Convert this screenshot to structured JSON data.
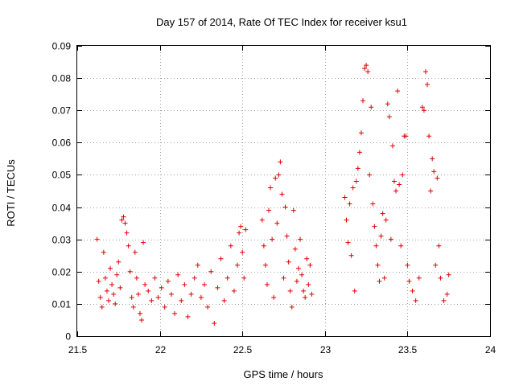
{
  "chart_data": {
    "type": "scatter",
    "title": "Day 157 of 2014, Rate Of TEC Index for receiver ksu1",
    "xlabel": "GPS time / hours",
    "ylabel": "ROTI / TECUs",
    "xlim": [
      21.5,
      24
    ],
    "ylim": [
      0,
      0.09
    ],
    "xticks": [
      21.5,
      22,
      22.5,
      23,
      23.5,
      24
    ],
    "xtick_labels": [
      "21.5",
      "22",
      "22.5",
      "23",
      "23.5",
      "24"
    ],
    "yticks": [
      0,
      0.01,
      0.02,
      0.03,
      0.04,
      0.05,
      0.06,
      0.07,
      0.08,
      0.09
    ],
    "ytick_labels": [
      "0",
      "0.01",
      "0.02",
      "0.03",
      "0.04",
      "0.05",
      "0.06",
      "0.07",
      "0.08",
      "0.09"
    ],
    "grid": true,
    "marker": "+",
    "marker_color": "#e00000",
    "series": [
      {
        "name": "ROTI",
        "points": [
          [
            21.62,
            0.03
          ],
          [
            21.63,
            0.017
          ],
          [
            21.64,
            0.012
          ],
          [
            21.65,
            0.009
          ],
          [
            21.66,
            0.026
          ],
          [
            21.67,
            0.018
          ],
          [
            21.68,
            0.014
          ],
          [
            21.69,
            0.011
          ],
          [
            21.7,
            0.021
          ],
          [
            21.71,
            0.016
          ],
          [
            21.72,
            0.013
          ],
          [
            21.73,
            0.01
          ],
          [
            21.74,
            0.019
          ],
          [
            21.75,
            0.023
          ],
          [
            21.76,
            0.015
          ],
          [
            21.77,
            0.036
          ],
          [
            21.78,
            0.037
          ],
          [
            21.79,
            0.035
          ],
          [
            21.8,
            0.032
          ],
          [
            21.81,
            0.028
          ],
          [
            21.82,
            0.02
          ],
          [
            21.83,
            0.012
          ],
          [
            21.84,
            0.009
          ],
          [
            21.85,
            0.026
          ],
          [
            21.86,
            0.018
          ],
          [
            21.87,
            0.013
          ],
          [
            21.88,
            0.007
          ],
          [
            21.89,
            0.005
          ],
          [
            21.9,
            0.029
          ],
          [
            21.91,
            0.016
          ],
          [
            21.93,
            0.014
          ],
          [
            21.95,
            0.011
          ],
          [
            21.97,
            0.018
          ],
          [
            21.99,
            0.012
          ],
          [
            22.01,
            0.015
          ],
          [
            22.03,
            0.009
          ],
          [
            22.05,
            0.017
          ],
          [
            22.07,
            0.013
          ],
          [
            22.09,
            0.007
          ],
          [
            22.11,
            0.019
          ],
          [
            22.13,
            0.011
          ],
          [
            22.15,
            0.016
          ],
          [
            22.17,
            0.006
          ],
          [
            22.19,
            0.013
          ],
          [
            22.21,
            0.018
          ],
          [
            22.23,
            0.022
          ],
          [
            22.25,
            0.012
          ],
          [
            22.27,
            0.016
          ],
          [
            22.29,
            0.009
          ],
          [
            22.31,
            0.02
          ],
          [
            22.33,
            0.004
          ],
          [
            22.35,
            0.015
          ],
          [
            22.37,
            0.024
          ],
          [
            22.39,
            0.011
          ],
          [
            22.41,
            0.018
          ],
          [
            22.43,
            0.028
          ],
          [
            22.45,
            0.014
          ],
          [
            22.47,
            0.022
          ],
          [
            22.48,
            0.032
          ],
          [
            22.49,
            0.034
          ],
          [
            22.5,
            0.026
          ],
          [
            22.51,
            0.018
          ],
          [
            22.52,
            0.033
          ],
          [
            22.62,
            0.036
          ],
          [
            22.63,
            0.028
          ],
          [
            22.64,
            0.022
          ],
          [
            22.65,
            0.016
          ],
          [
            22.66,
            0.039
          ],
          [
            22.67,
            0.046
          ],
          [
            22.68,
            0.03
          ],
          [
            22.69,
            0.012
          ],
          [
            22.7,
            0.049
          ],
          [
            22.71,
            0.035
          ],
          [
            22.72,
            0.05
          ],
          [
            22.73,
            0.054
          ],
          [
            22.74,
            0.044
          ],
          [
            22.75,
            0.018
          ],
          [
            22.76,
            0.04
          ],
          [
            22.77,
            0.031
          ],
          [
            22.78,
            0.023
          ],
          [
            22.79,
            0.014
          ],
          [
            22.8,
            0.009
          ],
          [
            22.81,
            0.039
          ],
          [
            22.82,
            0.027
          ],
          [
            22.83,
            0.017
          ],
          [
            22.84,
            0.021
          ],
          [
            22.85,
            0.03
          ],
          [
            22.86,
            0.019
          ],
          [
            22.87,
            0.014
          ],
          [
            22.88,
            0.012
          ],
          [
            22.89,
            0.024
          ],
          [
            22.9,
            0.016
          ],
          [
            22.91,
            0.022
          ],
          [
            22.92,
            0.013
          ],
          [
            23.12,
            0.043
          ],
          [
            23.13,
            0.036
          ],
          [
            23.14,
            0.029
          ],
          [
            23.15,
            0.041
          ],
          [
            23.16,
            0.025
          ],
          [
            23.17,
            0.046
          ],
          [
            23.18,
            0.014
          ],
          [
            23.19,
            0.048
          ],
          [
            23.2,
            0.052
          ],
          [
            23.21,
            0.057
          ],
          [
            23.22,
            0.063
          ],
          [
            23.23,
            0.073
          ],
          [
            23.24,
            0.083
          ],
          [
            23.25,
            0.084
          ],
          [
            23.26,
            0.082
          ],
          [
            23.27,
            0.05
          ],
          [
            23.28,
            0.071
          ],
          [
            23.29,
            0.041
          ],
          [
            23.3,
            0.034
          ],
          [
            23.31,
            0.028
          ],
          [
            23.32,
            0.022
          ],
          [
            23.33,
            0.017
          ],
          [
            23.34,
            0.031
          ],
          [
            23.35,
            0.038
          ],
          [
            23.36,
            0.018
          ],
          [
            23.37,
            0.036
          ],
          [
            23.38,
            0.072
          ],
          [
            23.39,
            0.068
          ],
          [
            23.4,
            0.03
          ],
          [
            23.41,
            0.059
          ],
          [
            23.42,
            0.048
          ],
          [
            23.43,
            0.045
          ],
          [
            23.44,
            0.076
          ],
          [
            23.45,
            0.047
          ],
          [
            23.46,
            0.028
          ],
          [
            23.47,
            0.05
          ],
          [
            23.48,
            0.062
          ],
          [
            23.49,
            0.062
          ],
          [
            23.5,
            0.022
          ],
          [
            23.51,
            0.017
          ],
          [
            23.53,
            0.014
          ],
          [
            23.55,
            0.011
          ],
          [
            23.57,
            0.018
          ],
          [
            23.59,
            0.071
          ],
          [
            23.6,
            0.07
          ],
          [
            23.61,
            0.082
          ],
          [
            23.62,
            0.078
          ],
          [
            23.63,
            0.062
          ],
          [
            23.64,
            0.045
          ],
          [
            23.65,
            0.055
          ],
          [
            23.66,
            0.051
          ],
          [
            23.67,
            0.022
          ],
          [
            23.68,
            0.049
          ],
          [
            23.69,
            0.028
          ],
          [
            23.7,
            0.018
          ],
          [
            23.72,
            0.011
          ],
          [
            23.74,
            0.013
          ],
          [
            23.75,
            0.019
          ]
        ]
      }
    ]
  }
}
